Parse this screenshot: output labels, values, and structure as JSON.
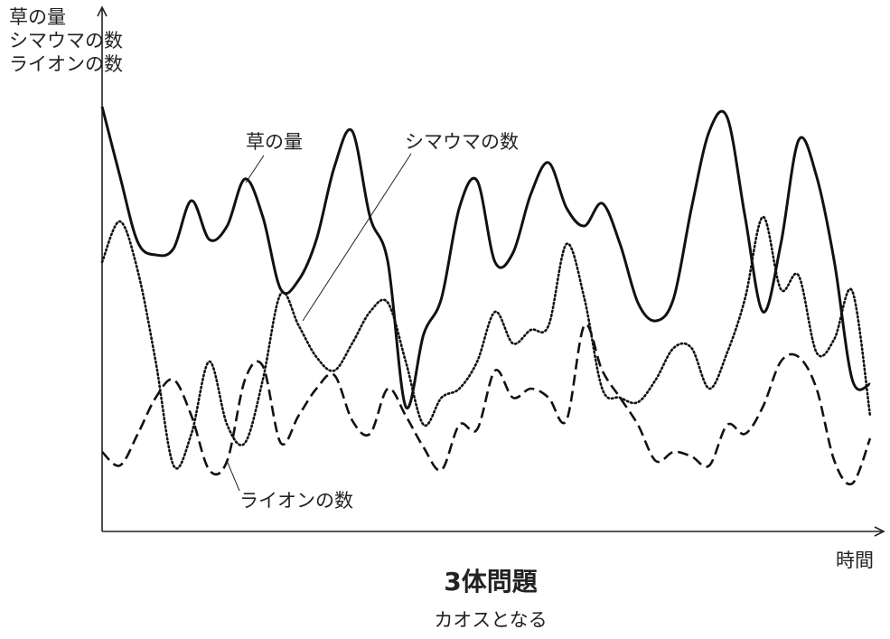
{
  "chart_data": {
    "type": "line",
    "title": "3体問題",
    "subtitle": "カオスとなる",
    "x_label": "時間",
    "y_label": [
      "草の量",
      "シマウマの数",
      "ライオンの数"
    ],
    "ylim": [
      0,
      578
    ],
    "series": [
      {
        "name": "草の量",
        "color": "#111111",
        "style": "solid",
        "values": [
          470,
          393,
          320,
          306,
          313,
          366,
          323,
          338,
          390,
          348,
          268,
          278,
          323,
          403,
          443,
          348,
          298,
          138,
          218,
          258,
          358,
          388,
          298,
          308,
          373,
          408,
          358,
          338,
          363,
          318,
          253,
          233,
          258,
          358,
          443,
          458,
          348,
          243,
          318,
          433,
          393,
          298,
          168,
          163
        ]
      },
      {
        "name": "シマウマの数",
        "color": "#111111",
        "style": "dotted",
        "values": [
          298,
          343,
          288,
          188,
          73,
          108,
          188,
          118,
          98,
          168,
          263,
          228,
          193,
          178,
          208,
          243,
          253,
          188,
          118,
          148,
          158,
          188,
          243,
          208,
          223,
          228,
          318,
          258,
          158,
          148,
          143,
          168,
          203,
          203,
          158,
          198,
          258,
          348,
          268,
          283,
          198,
          213,
          266,
          128
        ]
      },
      {
        "name": "ライオンの数",
        "color": "#111111",
        "style": "dashed",
        "values": [
          88,
          73,
          108,
          148,
          168,
          128,
          68,
          78,
          168,
          183,
          98,
          128,
          158,
          173,
          123,
          108,
          158,
          128,
          93,
          68,
          118,
          113,
          178,
          148,
          158,
          148,
          123,
          228,
          178,
          148,
          118,
          78,
          88,
          83,
          73,
          118,
          108,
          138,
          188,
          193,
          158,
          78,
          53,
          103
        ]
      }
    ]
  }
}
